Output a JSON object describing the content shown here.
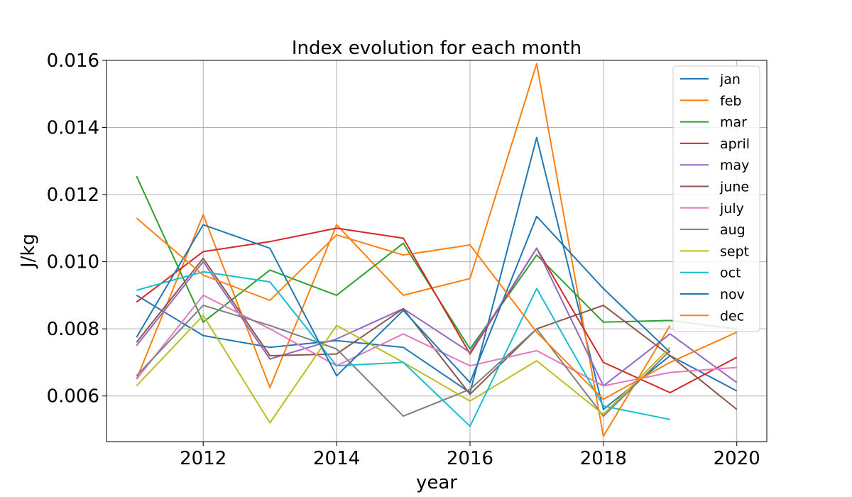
{
  "chart_data": {
    "type": "line",
    "title": "Index evolution for each month",
    "xlabel": "year",
    "ylabel": "J/kg",
    "xlim": [
      2010.55,
      2020.45
    ],
    "ylim": [
      0.00464,
      0.016
    ],
    "x_ticks": [
      2012,
      2014,
      2016,
      2018,
      2020
    ],
    "x_tick_labels": [
      "2012",
      "2014",
      "2016",
      "2018",
      "2020"
    ],
    "y_ticks": [
      0.006,
      0.008,
      0.01,
      0.012,
      0.014,
      0.016
    ],
    "y_tick_labels": [
      "0.006",
      "0.008",
      "0.010",
      "0.012",
      "0.014",
      "0.016"
    ],
    "grid": true,
    "legend_position": "top-right",
    "x": [
      2011,
      2012,
      2013,
      2014,
      2015,
      2016,
      2017,
      2018,
      2019,
      2020
    ],
    "series": [
      {
        "name": "jan",
        "color": "#1f77b4",
        "values": [
          0.009,
          0.0078,
          0.00745,
          0.00765,
          0.00745,
          0.0061,
          0.0137,
          0.0056,
          0.0072,
          0.00615
        ]
      },
      {
        "name": "feb",
        "color": "#ff7f0e",
        "values": [
          0.0065,
          0.0114,
          0.00625,
          0.0111,
          0.009,
          0.0095,
          0.0159,
          0.0048,
          0.0081,
          null
        ]
      },
      {
        "name": "mar",
        "color": "#2ca02c",
        "values": [
          0.01255,
          0.0082,
          0.00975,
          0.009,
          0.01055,
          0.0074,
          0.0102,
          0.0082,
          0.00825,
          0.008
        ]
      },
      {
        "name": "april",
        "color": "#d62728",
        "values": [
          0.0088,
          0.0103,
          0.0106,
          0.011,
          0.0107,
          0.00725,
          0.0104,
          0.007,
          0.0061,
          0.00715
        ]
      },
      {
        "name": "may",
        "color": "#9467bd",
        "values": [
          0.0075,
          0.01,
          0.0071,
          0.0077,
          0.0086,
          0.0073,
          0.0104,
          0.0063,
          0.00785,
          0.0064
        ]
      },
      {
        "name": "june",
        "color": "#8c564b",
        "values": [
          0.0076,
          0.0101,
          0.0072,
          0.00725,
          0.0086,
          0.00605,
          0.008,
          0.0087,
          0.0072,
          0.0056
        ]
      },
      {
        "name": "july",
        "color": "#e377c2",
        "values": [
          0.0065,
          0.009,
          0.008,
          0.0069,
          0.00785,
          0.0069,
          0.00735,
          0.0063,
          0.0067,
          0.00685
        ]
      },
      {
        "name": "aug",
        "color": "#7f7f7f",
        "values": [
          0.0066,
          0.0087,
          0.0081,
          0.0074,
          0.0054,
          0.0062,
          0.008,
          0.0054,
          0.00735,
          null
        ]
      },
      {
        "name": "sept",
        "color": "#bcbd22",
        "values": [
          0.0063,
          0.0084,
          0.0052,
          0.0081,
          0.007,
          0.00585,
          0.00705,
          0.00545,
          0.00745,
          null
        ]
      },
      {
        "name": "oct",
        "color": "#17becf",
        "values": [
          0.00915,
          0.0097,
          0.0094,
          0.0069,
          0.007,
          0.0051,
          0.0092,
          0.0057,
          0.0053,
          null
        ]
      },
      {
        "name": "nov",
        "color": "#1f77b4",
        "values": [
          0.00775,
          0.0111,
          0.0104,
          0.0066,
          0.00855,
          0.0064,
          0.01135,
          0.0092,
          0.0073,
          null
        ]
      },
      {
        "name": "dec",
        "color": "#ff7f0e",
        "values": [
          0.0113,
          0.0096,
          0.00885,
          0.0108,
          0.0102,
          0.0105,
          0.0079,
          0.0059,
          0.007,
          0.0079
        ]
      }
    ]
  }
}
